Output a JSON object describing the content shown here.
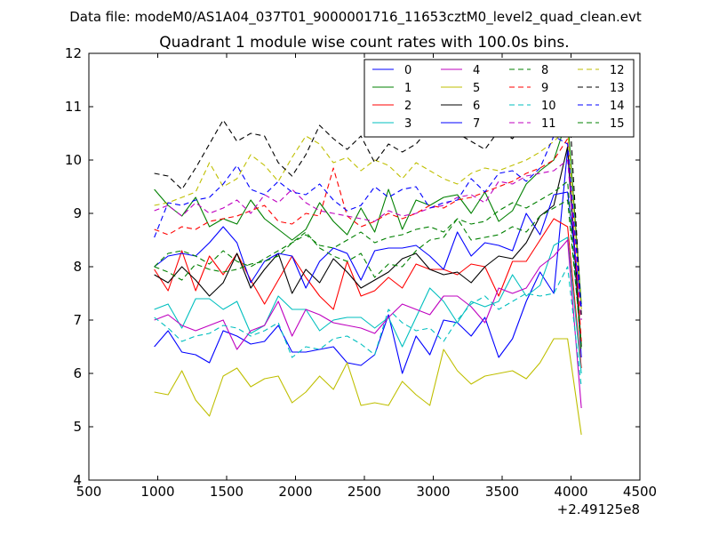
{
  "chart_data": {
    "type": "line",
    "suptitle": "Data file: modeM0/AS1A04_037T01_9000001716_11653cztM0_level2_quad_clean.evt",
    "title": "Quadrant 1 module wise count rates with 100.0s bins.",
    "xlabel": "",
    "ylabel": "",
    "xlim": [
      500,
      4500
    ],
    "ylim": [
      4,
      12
    ],
    "x_ticks": [
      500,
      1000,
      1500,
      2000,
      2500,
      3000,
      3500,
      4000,
      4500
    ],
    "x_tick_labels": [
      "500",
      "1000",
      "1500",
      "2000",
      "2500",
      "3000",
      "3500",
      "4000",
      "4500"
    ],
    "y_ticks": [
      4,
      5,
      6,
      7,
      8,
      9,
      10,
      11,
      12
    ],
    "y_tick_labels": [
      "4",
      "5",
      "6",
      "7",
      "8",
      "9",
      "10",
      "11",
      "12"
    ],
    "x_offset_label": "+2.49125e8",
    "legend_position": "top-right",
    "legend_columns": 4,
    "grid": false,
    "x": [
      975,
      1075,
      1175,
      1275,
      1375,
      1475,
      1575,
      1675,
      1775,
      1875,
      1975,
      2075,
      2175,
      2275,
      2375,
      2475,
      2575,
      2675,
      2775,
      2875,
      2975,
      3075,
      3175,
      3275,
      3375,
      3475,
      3575,
      3675,
      3775,
      3875,
      3975,
      4075
    ],
    "series": [
      {
        "name": "0",
        "color": "#0000ff",
        "dash": "solid",
        "values": [
          6.5,
          6.8,
          6.4,
          6.35,
          6.2,
          6.8,
          6.7,
          6.55,
          6.6,
          6.9,
          6.4,
          6.4,
          6.45,
          6.5,
          6.2,
          6.15,
          6.35,
          7.1,
          6.0,
          6.7,
          6.35,
          7.0,
          6.95,
          6.7,
          7.05,
          6.3,
          6.65,
          7.35,
          7.9,
          7.5,
          10.2,
          6.3
        ]
      },
      {
        "name": "1",
        "color": "#008000",
        "dash": "solid",
        "values": [
          9.45,
          9.15,
          8.95,
          9.3,
          8.75,
          8.9,
          8.8,
          9.25,
          8.9,
          8.7,
          8.5,
          8.7,
          9.2,
          8.85,
          8.6,
          9.1,
          8.65,
          9.45,
          8.7,
          9.25,
          9.15,
          9.3,
          9.35,
          9.0,
          9.4,
          8.85,
          9.05,
          9.55,
          9.8,
          10.0,
          10.8,
          7.3
        ]
      },
      {
        "name": "2",
        "color": "#ff0000",
        "dash": "solid",
        "values": [
          7.95,
          7.55,
          8.3,
          7.55,
          8.2,
          7.85,
          8.25,
          7.75,
          7.3,
          7.75,
          8.2,
          7.8,
          7.45,
          7.2,
          8.1,
          7.45,
          7.55,
          7.8,
          7.6,
          8.05,
          7.95,
          7.95,
          7.85,
          8.05,
          8.0,
          7.45,
          8.1,
          8.1,
          8.5,
          8.9,
          8.75,
          6.1
        ]
      },
      {
        "name": "3",
        "color": "#00bfbf",
        "dash": "solid",
        "values": [
          7.2,
          7.3,
          6.85,
          7.4,
          7.4,
          7.2,
          7.35,
          6.75,
          6.9,
          7.45,
          7.2,
          7.2,
          6.8,
          7.0,
          7.05,
          7.05,
          6.85,
          7.05,
          6.5,
          7.05,
          7.6,
          7.35,
          6.95,
          7.35,
          7.25,
          7.35,
          7.85,
          7.45,
          7.65,
          8.4,
          8.55,
          6.0
        ]
      },
      {
        "name": "4",
        "color": "#bf00bf",
        "dash": "solid",
        "values": [
          7.0,
          7.1,
          6.9,
          6.8,
          6.9,
          7.0,
          6.45,
          6.8,
          6.9,
          7.35,
          6.7,
          7.2,
          7.1,
          6.95,
          6.9,
          6.85,
          6.75,
          7.05,
          7.3,
          7.2,
          7.1,
          7.45,
          7.45,
          7.25,
          6.95,
          7.6,
          7.5,
          7.6,
          8.0,
          8.2,
          8.5,
          5.35
        ]
      },
      {
        "name": "5",
        "color": "#bfbf00",
        "dash": "solid",
        "values": [
          5.65,
          5.6,
          6.05,
          5.5,
          5.2,
          5.95,
          6.1,
          5.75,
          5.9,
          5.95,
          5.45,
          5.65,
          5.95,
          5.7,
          6.2,
          5.4,
          5.45,
          5.4,
          5.85,
          5.6,
          5.4,
          6.45,
          6.05,
          5.8,
          5.95,
          6.0,
          6.05,
          5.9,
          6.2,
          6.65,
          6.65,
          4.85
        ]
      },
      {
        "name": "6",
        "color": "#000000",
        "dash": "solid",
        "values": [
          7.85,
          7.7,
          8.0,
          7.75,
          7.45,
          7.7,
          8.25,
          7.6,
          7.95,
          8.25,
          7.5,
          7.95,
          7.7,
          8.15,
          7.9,
          7.6,
          7.75,
          7.9,
          8.15,
          8.25,
          7.95,
          7.85,
          7.9,
          7.7,
          8.0,
          8.2,
          8.15,
          8.45,
          8.95,
          9.15,
          10.25,
          6.5
        ]
      },
      {
        "name": "7",
        "color": "#0000ff",
        "dash": "solid",
        "values": [
          8.0,
          8.2,
          8.25,
          8.2,
          8.45,
          8.75,
          8.45,
          7.7,
          8.1,
          8.25,
          8.2,
          7.6,
          8.1,
          8.35,
          8.25,
          7.75,
          8.3,
          8.35,
          8.35,
          8.4,
          8.2,
          7.95,
          8.65,
          8.2,
          8.45,
          8.4,
          8.3,
          9.0,
          8.6,
          9.35,
          9.4,
          7.25
        ]
      },
      {
        "name": "8",
        "color": "#008000",
        "dash": "dashed",
        "values": [
          8.0,
          7.9,
          7.75,
          8.05,
          7.95,
          7.9,
          7.95,
          8.05,
          8.1,
          8.2,
          8.45,
          8.65,
          8.35,
          8.2,
          8.1,
          8.25,
          7.8,
          8.05,
          8.0,
          8.3,
          8.5,
          8.55,
          8.9,
          8.5,
          8.55,
          8.6,
          8.75,
          8.65,
          8.95,
          9.1,
          9.25,
          6.55
        ]
      },
      {
        "name": "9",
        "color": "#ff0000",
        "dash": "dashed",
        "values": [
          8.7,
          8.6,
          8.75,
          8.7,
          8.85,
          8.9,
          8.95,
          9.05,
          9.15,
          8.85,
          8.8,
          9.0,
          8.95,
          9.85,
          8.95,
          8.75,
          8.85,
          9.0,
          8.9,
          9.0,
          9.15,
          9.1,
          9.25,
          9.3,
          9.4,
          9.5,
          9.6,
          9.75,
          9.85,
          10.0,
          10.4,
          6.6
        ]
      },
      {
        "name": "10",
        "color": "#00bfbf",
        "dash": "dashed",
        "values": [
          7.05,
          6.85,
          6.6,
          6.7,
          6.75,
          6.9,
          6.85,
          6.7,
          6.8,
          6.95,
          6.3,
          6.5,
          6.45,
          6.65,
          6.7,
          6.55,
          6.35,
          7.2,
          6.95,
          6.8,
          6.85,
          6.6,
          7.0,
          7.3,
          7.45,
          7.2,
          7.35,
          7.5,
          7.45,
          7.5,
          8.0,
          5.75
        ]
      },
      {
        "name": "11",
        "color": "#bf00bf",
        "dash": "dashed",
        "values": [
          9.05,
          9.15,
          8.95,
          9.2,
          9.0,
          9.1,
          9.25,
          9.0,
          9.35,
          9.2,
          9.45,
          9.2,
          9.05,
          9.0,
          8.95,
          8.9,
          8.85,
          9.05,
          8.95,
          9.0,
          9.1,
          9.15,
          9.3,
          9.35,
          9.2,
          9.6,
          9.55,
          9.7,
          9.75,
          9.8,
          10.0,
          7.0
        ]
      },
      {
        "name": "12",
        "color": "#bfbf00",
        "dash": "dashed",
        "values": [
          9.15,
          9.2,
          9.3,
          9.4,
          9.95,
          9.5,
          9.65,
          10.1,
          9.9,
          9.6,
          10.05,
          10.45,
          10.3,
          9.95,
          10.05,
          9.8,
          10.0,
          9.9,
          9.65,
          9.95,
          9.8,
          9.65,
          9.55,
          9.75,
          9.85,
          9.8,
          9.9,
          10.0,
          10.15,
          10.35,
          10.6,
          7.2
        ]
      },
      {
        "name": "13",
        "color": "#000000",
        "dash": "dashed",
        "values": [
          9.75,
          9.7,
          9.45,
          9.85,
          10.3,
          10.75,
          10.35,
          10.5,
          10.45,
          9.95,
          9.7,
          10.1,
          10.65,
          10.4,
          10.2,
          10.45,
          9.95,
          10.3,
          10.15,
          10.3,
          10.6,
          10.75,
          10.5,
          10.35,
          10.2,
          10.55,
          10.4,
          10.75,
          10.85,
          11.1,
          11.55,
          7.1
        ]
      },
      {
        "name": "14",
        "color": "#0000ff",
        "dash": "dashed",
        "values": [
          8.55,
          9.2,
          9.15,
          9.25,
          9.3,
          9.55,
          9.9,
          9.45,
          9.35,
          9.6,
          9.4,
          9.35,
          9.55,
          9.25,
          9.05,
          9.15,
          9.5,
          9.3,
          9.45,
          9.5,
          9.1,
          9.2,
          9.25,
          9.65,
          9.4,
          9.75,
          9.8,
          9.6,
          9.85,
          10.45,
          10.3,
          7.2
        ]
      },
      {
        "name": "15",
        "color": "#008000",
        "dash": "dashed",
        "values": [
          8.0,
          8.25,
          8.3,
          8.2,
          8.05,
          8.3,
          8.1,
          8.0,
          8.15,
          8.3,
          8.45,
          8.6,
          8.4,
          8.35,
          8.5,
          8.65,
          8.45,
          8.55,
          8.6,
          8.7,
          8.75,
          8.65,
          8.9,
          8.8,
          8.85,
          9.05,
          9.2,
          9.1,
          9.25,
          9.4,
          9.6,
          6.4
        ]
      }
    ]
  }
}
